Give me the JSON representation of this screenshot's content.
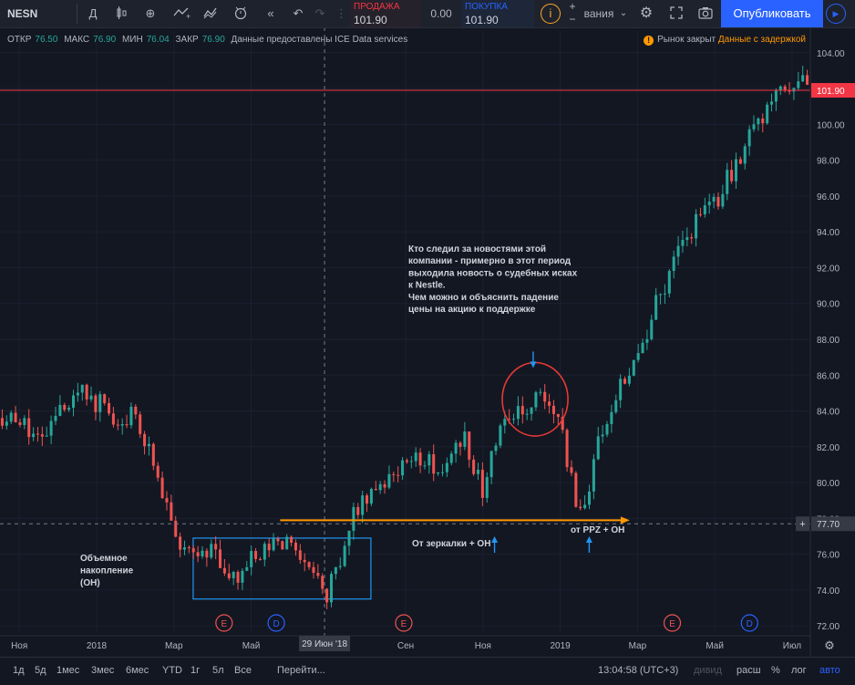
{
  "toolbar": {
    "symbol": "NESN",
    "interval": "Д",
    "sell_label": "ПРОДАЖА",
    "sell_value": "101.90",
    "spread": "0.00",
    "buy_label": "ПОКУПКА",
    "buy_value": "101.90",
    "partial_label": "вания",
    "publish": "Опубликовать",
    "icons": [
      "candles-icon",
      "indicators-icon",
      "add-icon",
      "compare-icon",
      "templates-icon",
      "alert-icon",
      "replay-icon",
      "undo-icon",
      "redo-icon",
      "info-icon",
      "settings-icon",
      "fullscreen-icon",
      "camera-icon",
      "play-icon"
    ]
  },
  "legend": {
    "open_label": "ОТКР",
    "open": "76.50",
    "high_label": "МАКС",
    "high": "76.90",
    "low_label": "МИН",
    "low": "76.04",
    "close_label": "ЗАКР",
    "close": "76.90",
    "source": "Данные предоставлены ICE Data services"
  },
  "status": {
    "market": "Рынок закрыт",
    "delay": "Данные с задержкой",
    "dot_glyph": "!"
  },
  "price_labels": {
    "current": "101.90",
    "cursor": "77.70",
    "current_color": "#f23645"
  },
  "crosshair_date": "29 Июн '18",
  "event_markers": [
    {
      "letter": "E",
      "color": "#ef5350"
    },
    {
      "letter": "D",
      "color": "#2962ff"
    },
    {
      "letter": "E",
      "color": "#ef5350"
    },
    {
      "letter": "E",
      "color": "#ef5350"
    },
    {
      "letter": "D",
      "color": "#2962ff"
    }
  ],
  "annotations": {
    "news_lines": [
      "Кто следил за новостями этой",
      "компании - примерно в этот период",
      "выходила новость о судебных исках",
      "к Nestle.",
      "Чем можно и объяснить падение",
      "цены на акцию к поддержке"
    ],
    "accumulation_lines": [
      "Объемное",
      "накопление",
      "(ОН)"
    ],
    "mirror_label": "От зеркалки + ОН",
    "ppz_label": "от PPZ + ОН"
  },
  "bottom": {
    "ranges": [
      "1д",
      "5д",
      "1мес",
      "3мес",
      "6мес",
      "YTD",
      "1г",
      "5л",
      "Все"
    ],
    "goto": "Перейти...",
    "time": "13:04:58 (UTC+3)",
    "modes": [
      "дивид",
      "расш",
      "%",
      "лог",
      "авто"
    ],
    "gear": "⚙"
  },
  "chart_data": {
    "type": "candlestick",
    "symbol": "NESN",
    "ylim": [
      71.5,
      104.6
    ],
    "y_ticks": [
      72.0,
      74.0,
      76.0,
      78.0,
      80.0,
      82.0,
      84.0,
      86.0,
      88.0,
      90.0,
      92.0,
      94.0,
      96.0,
      98.0,
      100.0,
      102.0,
      104.0
    ],
    "x_ticks": [
      "Ноя",
      "2018",
      "Мар",
      "Май",
      "Сен",
      "Ноя",
      "2019",
      "Мар",
      "Май",
      "Июл"
    ],
    "x_tick_months": [
      0,
      2,
      4,
      6,
      10,
      12,
      14,
      16,
      18,
      20
    ],
    "x_range_months": [
      -0.5,
      20.45
    ],
    "crosshair_month": 7.9,
    "horizontal_level": 77.7,
    "current_price": 101.9,
    "event_months": [
      5.3,
      6.65,
      9.95,
      16.9,
      18.9
    ],
    "accumulation_zone": {
      "month_from": 4.5,
      "month_to": 9.1,
      "price_from": 73.5,
      "price_to": 76.9
    },
    "support_arrow": {
      "month_from": 6.75,
      "month_to": 15.8,
      "price": 77.9
    },
    "highlight_ellipse": {
      "month_from": 12.5,
      "month_to": 14.2,
      "price_from": 82.6,
      "price_to": 86.7
    },
    "arrow_targets": [
      {
        "month": 13.3,
        "price": 86.4
      },
      {
        "month": 12.3,
        "price": 77.0
      },
      {
        "month": 14.75,
        "price": 77.0
      }
    ],
    "path_anchors": [
      {
        "m": -0.5,
        "p": 83.6
      },
      {
        "m": 0.0,
        "p": 83.2
      },
      {
        "m": 0.7,
        "p": 82.3
      },
      {
        "m": 1.0,
        "p": 84.3
      },
      {
        "m": 1.5,
        "p": 85.1
      },
      {
        "m": 2.2,
        "p": 84.2
      },
      {
        "m": 2.6,
        "p": 83.2
      },
      {
        "m": 3.0,
        "p": 83.8
      },
      {
        "m": 3.6,
        "p": 80.5
      },
      {
        "m": 4.0,
        "p": 76.8
      },
      {
        "m": 4.5,
        "p": 75.6
      },
      {
        "m": 5.0,
        "p": 76.4
      },
      {
        "m": 5.5,
        "p": 74.5
      },
      {
        "m": 6.0,
        "p": 75.8
      },
      {
        "m": 6.5,
        "p": 76.2
      },
      {
        "m": 7.0,
        "p": 77.3
      },
      {
        "m": 7.5,
        "p": 75.0
      },
      {
        "m": 8.0,
        "p": 73.8
      },
      {
        "m": 8.4,
        "p": 76.4
      },
      {
        "m": 8.8,
        "p": 79.0
      },
      {
        "m": 9.5,
        "p": 80.3
      },
      {
        "m": 10.2,
        "p": 81.8
      },
      {
        "m": 11.0,
        "p": 80.6
      },
      {
        "m": 11.5,
        "p": 82.4
      },
      {
        "m": 12.0,
        "p": 79.5
      },
      {
        "m": 12.5,
        "p": 83.5
      },
      {
        "m": 13.0,
        "p": 84.2
      },
      {
        "m": 13.5,
        "p": 84.6
      },
      {
        "m": 14.0,
        "p": 84.0
      },
      {
        "m": 14.25,
        "p": 80.2
      },
      {
        "m": 14.55,
        "p": 78.4
      },
      {
        "m": 15.0,
        "p": 82.2
      },
      {
        "m": 15.5,
        "p": 85.0
      },
      {
        "m": 16.0,
        "p": 86.6
      },
      {
        "m": 16.5,
        "p": 90.0
      },
      {
        "m": 17.0,
        "p": 92.6
      },
      {
        "m": 17.5,
        "p": 94.6
      },
      {
        "m": 18.0,
        "p": 95.6
      },
      {
        "m": 18.5,
        "p": 97.6
      },
      {
        "m": 19.0,
        "p": 99.6
      },
      {
        "m": 19.5,
        "p": 101.4
      },
      {
        "m": 20.0,
        "p": 102.1
      },
      {
        "m": 20.45,
        "p": 102.3
      }
    ],
    "candle_count": 182,
    "up_color": "#26a69a",
    "down_color": "#ef5350"
  }
}
